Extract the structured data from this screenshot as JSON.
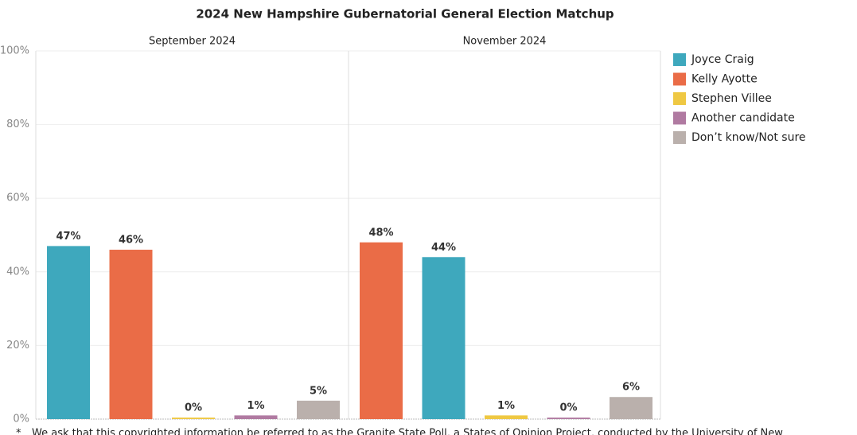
{
  "title": "2024 New Hampshire Gubernatorial General Election Matchup",
  "footnote": {
    "marker": "*",
    "text": "We ask that this copyrighted information be referred to as the Granite State Poll, a States of Opinion Project, conducted by the University of New"
  },
  "chart_data": [
    {
      "type": "bar",
      "subtitle": "September 2024",
      "ylim": [
        0,
        100
      ],
      "yticks": [
        {
          "value": 0,
          "label": "0%"
        },
        {
          "value": 20,
          "label": "20%"
        },
        {
          "value": 40,
          "label": "40%"
        },
        {
          "value": 60,
          "label": "60%"
        },
        {
          "value": 80,
          "label": "80%"
        },
        {
          "value": 100,
          "label": "100%"
        }
      ],
      "series": [
        {
          "name": "Joyce Craig",
          "color": "#3ea8bd",
          "values": [
            47
          ],
          "value_labels": [
            "47%"
          ]
        },
        {
          "name": "Kelly Ayotte",
          "color": "#ea6c47",
          "values": [
            46
          ],
          "value_labels": [
            "46%"
          ]
        },
        {
          "name": "Stephen Villee",
          "color": "#efc843",
          "values": [
            0.4
          ],
          "value_labels": [
            "0%"
          ]
        },
        {
          "name": "Another candidate",
          "color": "#b07aa1",
          "values": [
            1
          ],
          "value_labels": [
            "1%"
          ]
        },
        {
          "name": "Don’t know/Not sure",
          "color": "#bab0ac",
          "values": [
            5
          ],
          "value_labels": [
            "5%"
          ]
        }
      ]
    },
    {
      "type": "bar",
      "subtitle": "November 2024",
      "ylim": [
        0,
        100
      ],
      "yticks": [
        {
          "value": 0,
          "label": "0%"
        },
        {
          "value": 20,
          "label": "20%"
        },
        {
          "value": 40,
          "label": "40%"
        },
        {
          "value": 60,
          "label": "60%"
        },
        {
          "value": 80,
          "label": "80%"
        },
        {
          "value": 100,
          "label": "100%"
        }
      ],
      "series": [
        {
          "name": "Kelly Ayotte",
          "color": "#ea6c47",
          "values": [
            48
          ],
          "value_labels": [
            "48%"
          ]
        },
        {
          "name": "Joyce Craig",
          "color": "#3ea8bd",
          "values": [
            44
          ],
          "value_labels": [
            "44%"
          ]
        },
        {
          "name": "Stephen Villee",
          "color": "#efc843",
          "values": [
            1
          ],
          "value_labels": [
            "1%"
          ]
        },
        {
          "name": "Another candidate",
          "color": "#b07aa1",
          "values": [
            0.4
          ],
          "value_labels": [
            "0%"
          ]
        },
        {
          "name": "Don’t know/Not sure",
          "color": "#bab0ac",
          "values": [
            6
          ],
          "value_labels": [
            "6%"
          ]
        }
      ]
    }
  ]
}
